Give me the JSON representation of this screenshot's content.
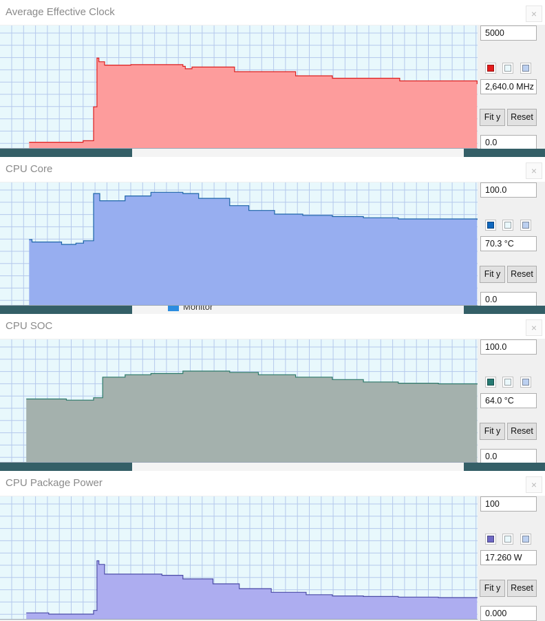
{
  "background": {
    "desktop_color": "#2f5e66",
    "partial_text": "Monitor"
  },
  "panels": [
    {
      "title": "Average Effective Clock",
      "close_label": "×",
      "max_label": "5000",
      "current_label": "2,640.0 MHz",
      "min_label": "0.0",
      "fit_label": "Fit y",
      "reset_label": "Reset",
      "fill_color": "#fd9c9c",
      "line_color": "#dc1e1e",
      "swatch_color": "#e41b1b",
      "chart_data": {
        "type": "area",
        "title": "Average Effective Clock",
        "ylim": [
          0,
          5000
        ],
        "unit": "MHz",
        "grid": true,
        "x": [
          0,
          5.9,
          6.1,
          9.5,
          9.7,
          17.4,
          19.6,
          20.3,
          20.7,
          21.9,
          27.4,
          38.3,
          38.8,
          40.2,
          49.1,
          61.9,
          69.6,
          83.7,
          99.9
        ],
        "values": [
          null,
          null,
          240,
          240,
          240,
          300,
          1700,
          3710,
          3560,
          3420,
          3440,
          3370,
          3270,
          3340,
          3150,
          2980,
          2880,
          2770,
          2640
        ]
      }
    },
    {
      "title": "CPU Core",
      "close_label": "×",
      "max_label": "100.0",
      "current_label": "70.3 °C",
      "min_label": "0.0",
      "fit_label": "Fit y",
      "reset_label": "Reset",
      "fill_color": "#97aef0",
      "line_color": "#1c64a8",
      "swatch_color": "#1068bf",
      "chart_data": {
        "type": "area",
        "title": "CPU Core",
        "ylim": [
          0,
          100
        ],
        "unit": "°C",
        "grid": true,
        "x": [
          0,
          5.9,
          6.1,
          6.7,
          12.9,
          15.9,
          17.5,
          19.6,
          20.9,
          26.2,
          31.6,
          38.3,
          41.6,
          48.1,
          52.1,
          57.5,
          63.4,
          69.6,
          76.1,
          83.4,
          91.8,
          99.9
        ],
        "values": [
          null,
          null,
          54,
          52,
          50,
          51,
          53,
          92,
          86,
          90,
          93,
          92,
          88,
          82,
          78,
          75,
          74,
          73,
          72,
          71,
          71,
          70.3
        ]
      }
    },
    {
      "title": "CPU SOC",
      "close_label": "×",
      "max_label": "100.0",
      "current_label": "64.0 °C",
      "min_label": "0.0",
      "fit_label": "Fit y",
      "reset_label": "Reset",
      "fill_color": "#a4b1ad",
      "line_color": "#2a7868",
      "swatch_color": "#277a73",
      "chart_data": {
        "type": "area",
        "title": "CPU SOC",
        "ylim": [
          0,
          100
        ],
        "unit": "°C",
        "grid": true,
        "x": [
          0,
          5.3,
          5.5,
          10.6,
          13.9,
          16.5,
          19.6,
          21.5,
          26.2,
          31.6,
          38.3,
          41.6,
          48.1,
          54.1,
          61.9,
          69.6,
          76.1,
          83.4,
          91.8,
          99.9
        ],
        "values": [
          null,
          null,
          52,
          52,
          51,
          51,
          53,
          70,
          72,
          73,
          75,
          75,
          74,
          72,
          70,
          68,
          66,
          65,
          64.5,
          64
        ]
      }
    },
    {
      "title": "CPU Package Power",
      "close_label": "×",
      "max_label": "100",
      "current_label": "17.260 W",
      "min_label": "0.000",
      "fit_label": "Fit y",
      "reset_label": "Reset",
      "fill_color": "#adadf0",
      "line_color": "#4a4aa6",
      "swatch_color": "#6e68c4",
      "chart_data": {
        "type": "area",
        "title": "CPU Package Power",
        "ylim": [
          0,
          100
        ],
        "unit": "W",
        "grid": true,
        "x": [
          0,
          5.3,
          5.5,
          10.2,
          13.3,
          17.4,
          19.6,
          20.3,
          20.7,
          21.9,
          31.6,
          33.9,
          34.5,
          37.4,
          38.3,
          40.3,
          44.6,
          50.1,
          56.8,
          64.1,
          69.6,
          76.1,
          83.4,
          91.8,
          99.9
        ],
        "values": [
          null,
          null,
          5,
          4,
          4,
          4,
          7,
          48,
          45,
          37,
          37,
          36,
          36,
          36,
          33,
          33,
          29,
          25,
          22,
          20,
          19,
          18.5,
          18,
          17.6,
          17.26
        ]
      }
    }
  ]
}
